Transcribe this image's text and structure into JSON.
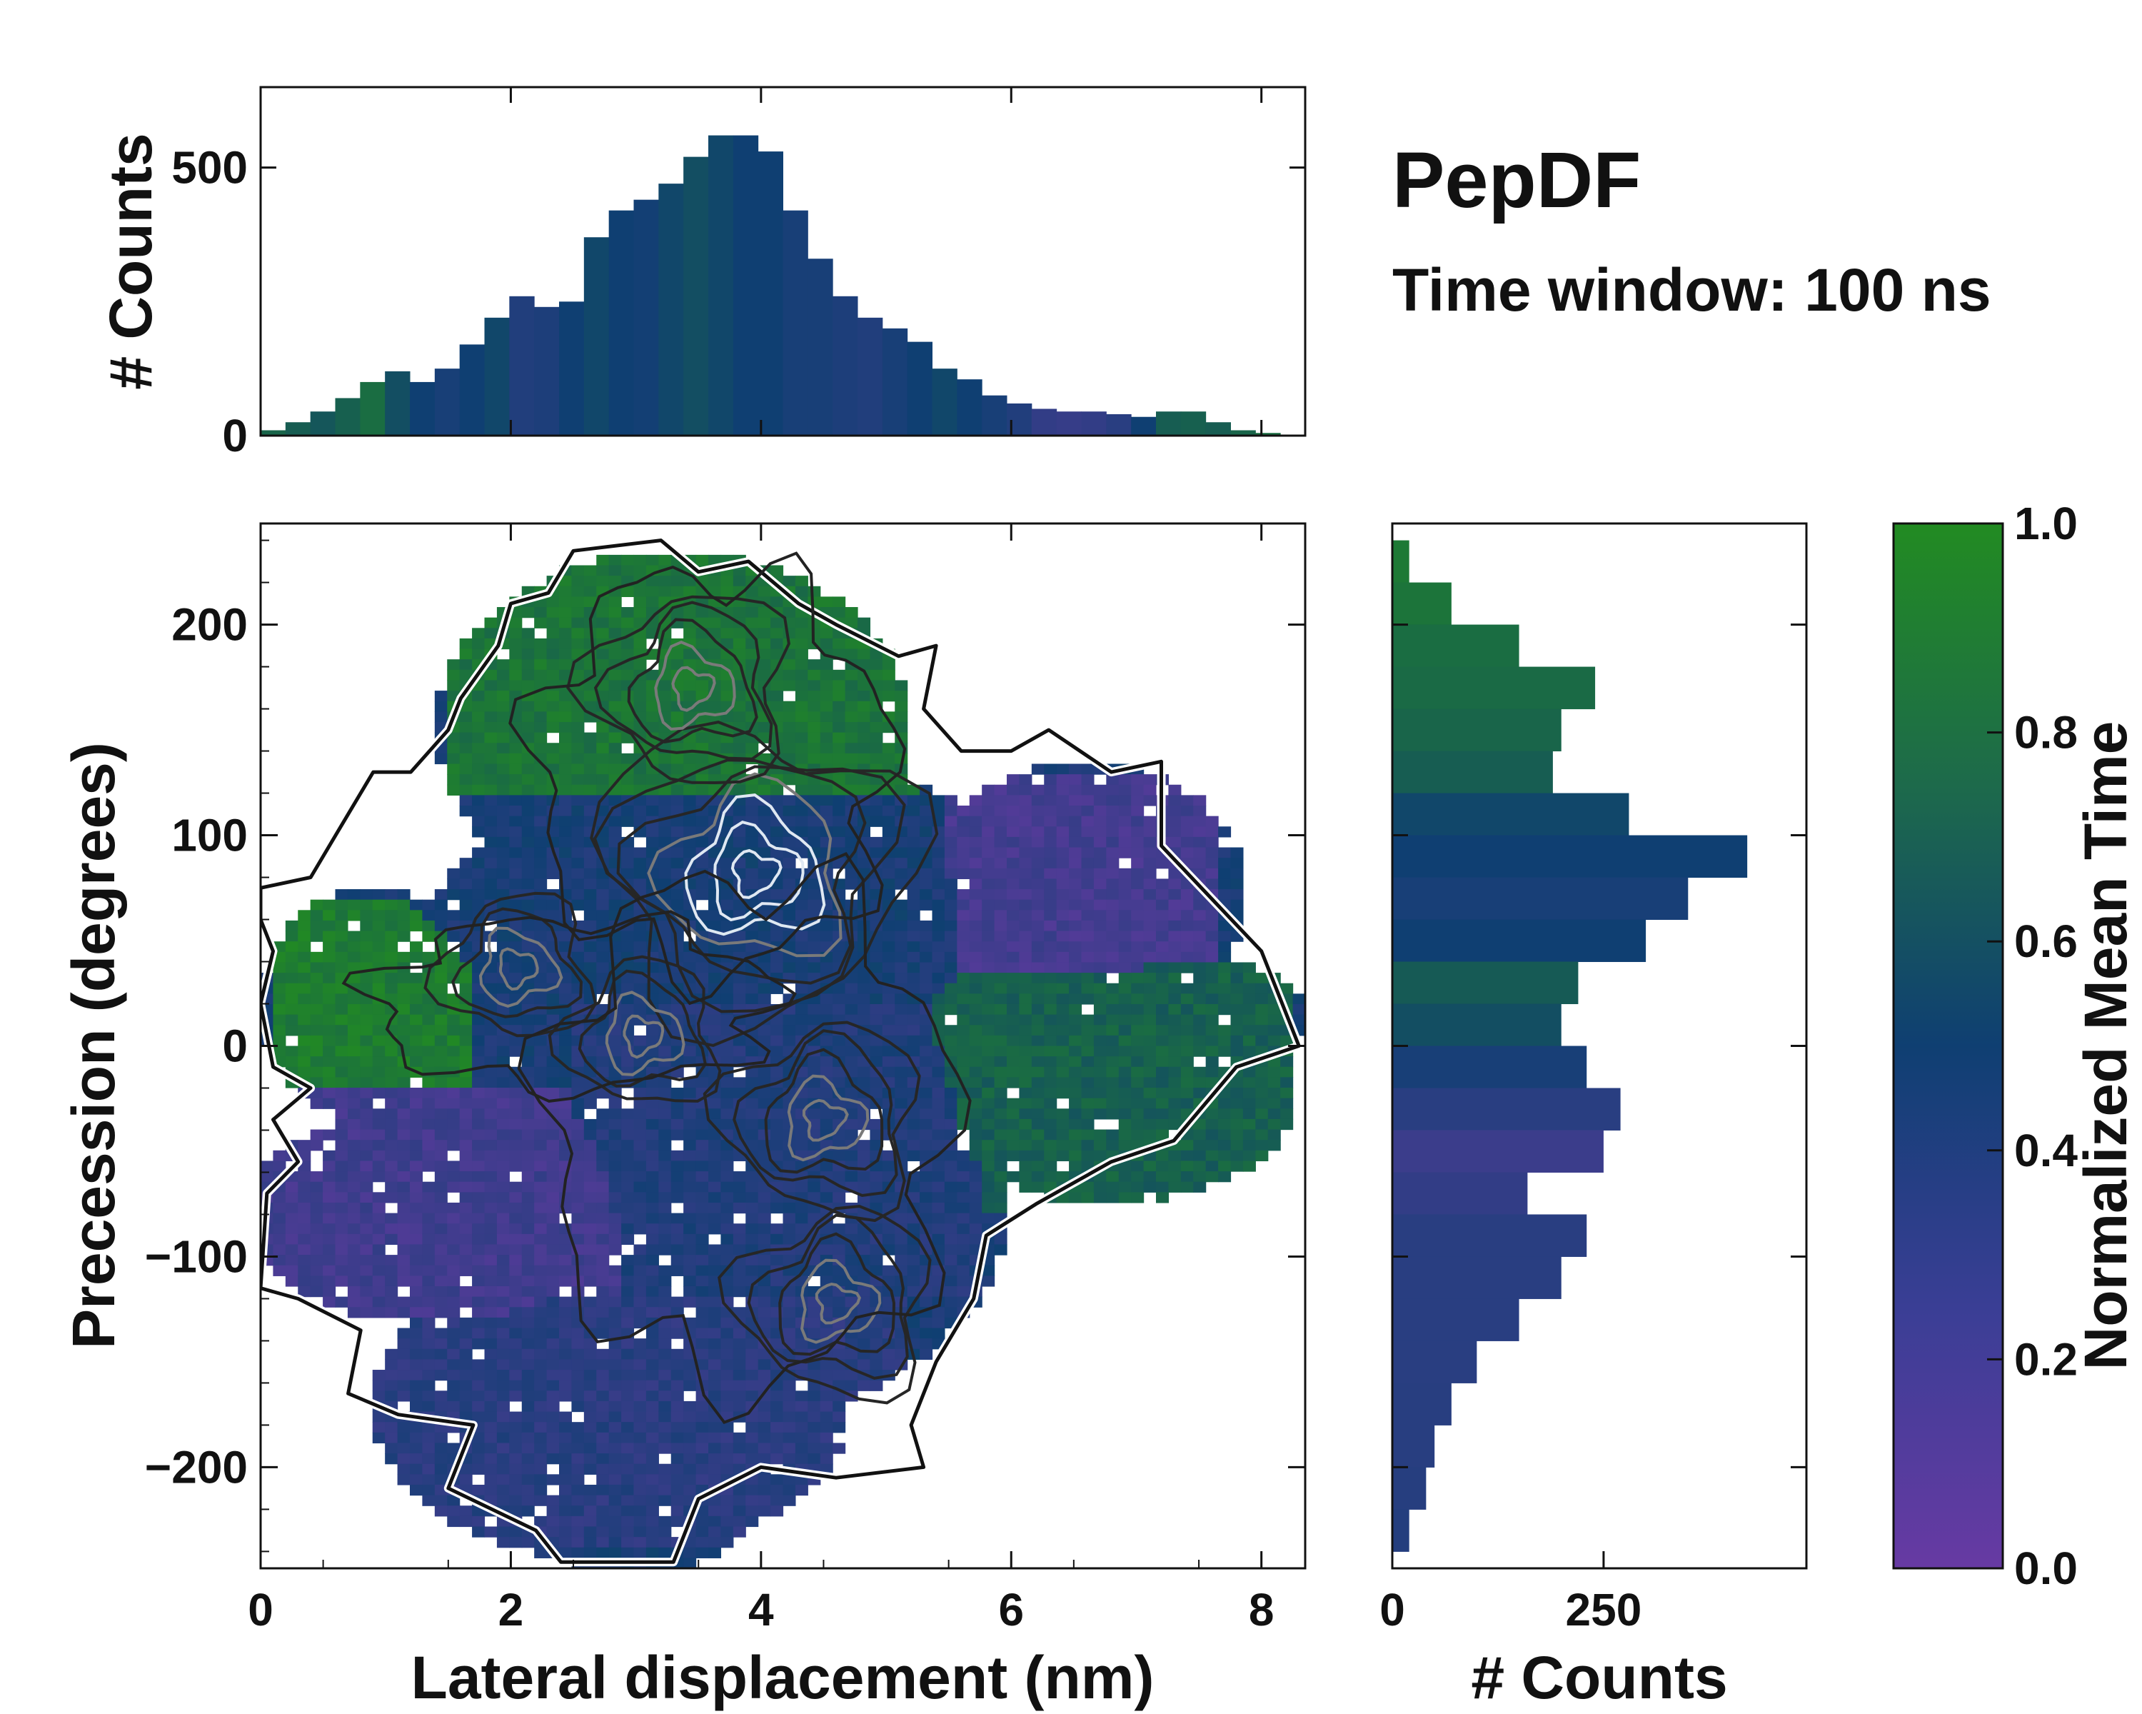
{
  "title": "PepDF",
  "subtitle": "Time window: 100 ns",
  "colors": {
    "low": "#673AA3",
    "mid": "#0F3F72",
    "high": "#228B22",
    "outline": "#111111"
  },
  "chart_data": [
    {
      "type": "bar",
      "name": "top-histogram",
      "ylabel": "# Counts",
      "xlim": [
        0,
        8.4
      ],
      "ylim": [
        0,
        650
      ],
      "yticks": [
        "0",
        "500"
      ],
      "ytick_values": [
        0,
        500
      ],
      "bin_width": 0.2,
      "x": [
        0.1,
        0.3,
        0.5,
        0.7,
        0.9,
        1.1,
        1.3,
        1.5,
        1.7,
        1.9,
        2.1,
        2.3,
        2.5,
        2.7,
        2.9,
        3.1,
        3.3,
        3.5,
        3.7,
        3.9,
        4.1,
        4.3,
        4.5,
        4.7,
        4.9,
        5.1,
        5.3,
        5.5,
        5.7,
        5.9,
        6.1,
        6.3,
        6.5,
        6.7,
        6.9,
        7.1,
        7.3,
        7.5,
        7.7,
        7.9,
        8.1
      ],
      "values": [
        10,
        25,
        45,
        70,
        100,
        120,
        100,
        125,
        170,
        220,
        260,
        240,
        250,
        370,
        420,
        440,
        470,
        520,
        560,
        560,
        530,
        420,
        330,
        260,
        220,
        200,
        175,
        125,
        105,
        75,
        60,
        50,
        45,
        45,
        40,
        35,
        45,
        45,
        25,
        10,
        5
      ],
      "time_color": [
        0.75,
        0.7,
        0.65,
        0.72,
        0.8,
        0.6,
        0.5,
        0.45,
        0.5,
        0.55,
        0.4,
        0.42,
        0.5,
        0.55,
        0.5,
        0.48,
        0.55,
        0.6,
        0.55,
        0.5,
        0.5,
        0.45,
        0.45,
        0.42,
        0.4,
        0.45,
        0.5,
        0.55,
        0.5,
        0.45,
        0.4,
        0.3,
        0.28,
        0.3,
        0.35,
        0.5,
        0.7,
        0.72,
        0.7,
        0.75,
        0.8
      ]
    },
    {
      "type": "heatmap",
      "name": "main-heatmap",
      "xlabel": "Lateral displacement (nm)",
      "ylabel": "Precession (degrees)",
      "xlim": [
        0,
        8.35
      ],
      "ylim": [
        -248,
        248
      ],
      "xticks": [
        "0",
        "2",
        "4",
        "6",
        "8"
      ],
      "xtick_values": [
        0,
        2,
        4,
        6,
        8
      ],
      "yticks": [
        "200",
        "100",
        "0",
        "−100",
        "−200"
      ],
      "ytick_values": [
        200,
        100,
        0,
        -100,
        -200
      ],
      "regions": [
        {
          "label": "upper-green",
          "x": [
            1.5,
            5.3
          ],
          "y": [
            120,
            235
          ],
          "value": 0.85
        },
        {
          "label": "upper-mid-blue",
          "x": [
            1.2,
            5.6
          ],
          "y": [
            20,
            120
          ],
          "value": 0.45
        },
        {
          "label": "right-purple",
          "x": [
            5.5,
            7.7
          ],
          "y": [
            30,
            130
          ],
          "value": 0.2
        },
        {
          "label": "left-green",
          "x": [
            0.1,
            1.7
          ],
          "y": [
            -20,
            70
          ],
          "value": 0.9
        },
        {
          "label": "right-teal",
          "x": [
            5.4,
            8.3
          ],
          "y": [
            -80,
            40
          ],
          "value": 0.72
        },
        {
          "label": "center-blue",
          "x": [
            2.5,
            5.8
          ],
          "y": [
            -120,
            20
          ],
          "value": 0.4
        },
        {
          "label": "lower-left-purple",
          "x": [
            0.0,
            3.0
          ],
          "y": [
            -130,
            -20
          ],
          "value": 0.22
        },
        {
          "label": "bottom-blue",
          "x": [
            0.7,
            5.2
          ],
          "y": [
            -240,
            -120
          ],
          "value": 0.35
        }
      ],
      "peaks": [
        {
          "x": 3.95,
          "y": 82,
          "strength": 1.0
        },
        {
          "x": 3.45,
          "y": 170,
          "strength": 0.6
        },
        {
          "x": 4.5,
          "y": -35,
          "strength": 0.55
        },
        {
          "x": 4.6,
          "y": -122,
          "strength": 0.5
        },
        {
          "x": 3.05,
          "y": 5,
          "strength": 0.45
        },
        {
          "x": 2.05,
          "y": 37,
          "strength": 0.4
        }
      ]
    },
    {
      "type": "bar",
      "orientation": "horizontal",
      "name": "right-histogram",
      "xlabel": "# Counts",
      "xlim": [
        0,
        490
      ],
      "xticks": [
        "0",
        "250"
      ],
      "xtick_values": [
        0,
        250
      ],
      "ylim": [
        -248,
        248
      ],
      "y": [
        230,
        210,
        190,
        170,
        150,
        130,
        110,
        90,
        70,
        50,
        30,
        10,
        -10,
        -30,
        -50,
        -70,
        -90,
        -110,
        -130,
        -150,
        -170,
        -190,
        -210,
        -230
      ],
      "values": [
        20,
        70,
        150,
        240,
        200,
        190,
        280,
        420,
        350,
        300,
        220,
        200,
        230,
        270,
        250,
        160,
        230,
        200,
        150,
        100,
        70,
        50,
        40,
        20
      ],
      "time_color": [
        0.88,
        0.85,
        0.8,
        0.78,
        0.75,
        0.7,
        0.55,
        0.5,
        0.45,
        0.5,
        0.68,
        0.6,
        0.45,
        0.35,
        0.25,
        0.3,
        0.35,
        0.35,
        0.35,
        0.35,
        0.36,
        0.36,
        0.37,
        0.38
      ]
    },
    {
      "type": "colorbar",
      "name": "colorbar",
      "label": "Normalized Mean Time",
      "range": [
        0,
        1
      ],
      "ticks": [
        "0.0",
        "0.2",
        "0.4",
        "0.6",
        "0.8",
        "1.0"
      ],
      "tick_values": [
        0.0,
        0.2,
        0.4,
        0.6,
        0.8,
        1.0
      ]
    }
  ]
}
